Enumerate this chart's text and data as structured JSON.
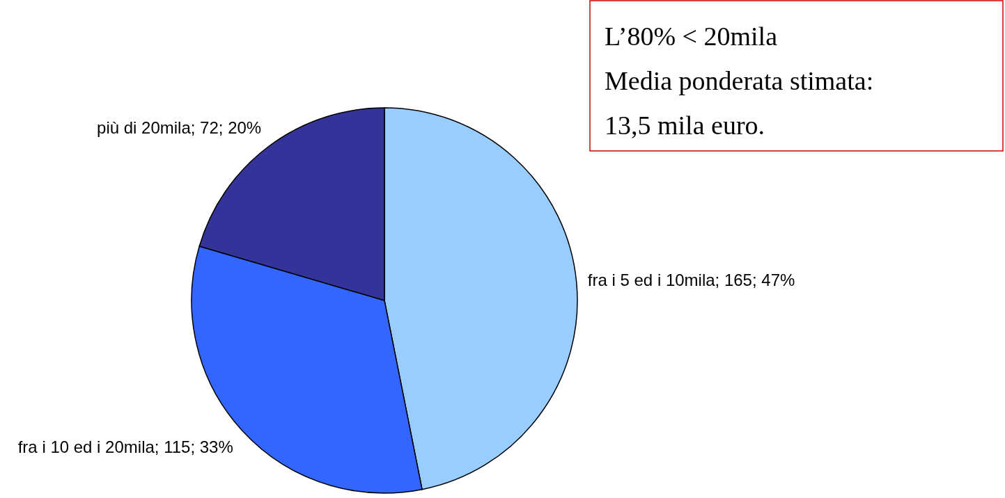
{
  "chart_data": {
    "type": "pie",
    "categories": [
      "fra i 5 ed i 10mila",
      "fra i 10 ed i 20mila",
      "più di 20mila"
    ],
    "values": [
      165,
      115,
      72
    ],
    "value_labels": [
      "165; 47%",
      "115; 33%",
      "72; 20%"
    ],
    "colors": [
      "#99ccff",
      "#3366ff",
      "#333399"
    ],
    "annotations": [
      "L’80% < 20mila",
      "Media ponderata stimata:",
      "13,5 mila euro."
    ]
  }
}
